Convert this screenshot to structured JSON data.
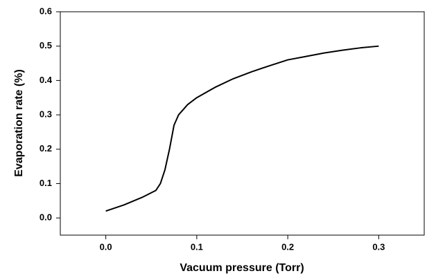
{
  "chart_data": {
    "type": "line",
    "xlabel": "Vacuum pressure (Torr)",
    "ylabel": "Evaporation rate (%)",
    "x": [
      0.0,
      0.02,
      0.04,
      0.055,
      0.06,
      0.065,
      0.07,
      0.075,
      0.08,
      0.09,
      0.1,
      0.12,
      0.14,
      0.16,
      0.18,
      0.2,
      0.22,
      0.24,
      0.26,
      0.28,
      0.3
    ],
    "values": [
      0.02,
      0.038,
      0.06,
      0.08,
      0.1,
      0.14,
      0.2,
      0.27,
      0.3,
      0.33,
      0.35,
      0.38,
      0.405,
      0.425,
      0.443,
      0.46,
      0.47,
      0.48,
      0.488,
      0.495,
      0.5
    ],
    "color": "#000000",
    "xlim": [
      -0.05,
      0.35
    ],
    "ylim": [
      -0.05,
      0.6
    ],
    "xticks": [
      {
        "value": 0,
        "label": "0.0"
      },
      0.1,
      0.2,
      0.3
    ],
    "yticks": [
      {
        "value": 0,
        "label": "0.0"
      },
      0.1,
      0.2,
      0.3,
      0.4,
      0.5,
      0.6
    ],
    "grid": false
  }
}
